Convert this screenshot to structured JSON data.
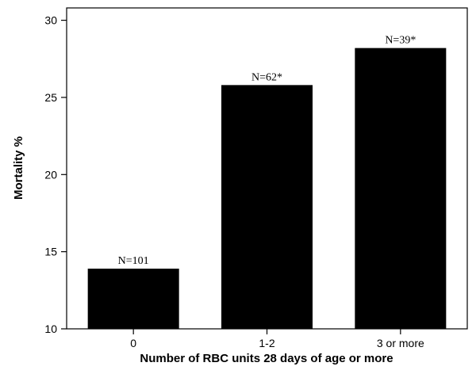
{
  "chart_data": {
    "type": "bar",
    "title": "",
    "xlabel": "Number of RBC units 28 days of age or more",
    "ylabel": "Mortality %",
    "categories": [
      "0",
      "1-2",
      "3 or more"
    ],
    "values": [
      13.9,
      25.8,
      28.2
    ],
    "data_labels": [
      "N=101",
      "N=62*",
      "N=39*"
    ],
    "ylim": [
      10,
      30.8
    ],
    "yticks": [
      10,
      15,
      20,
      25,
      30
    ],
    "grid": false,
    "legend": "none",
    "bar_color": "#000000",
    "background": "#ffffff"
  }
}
